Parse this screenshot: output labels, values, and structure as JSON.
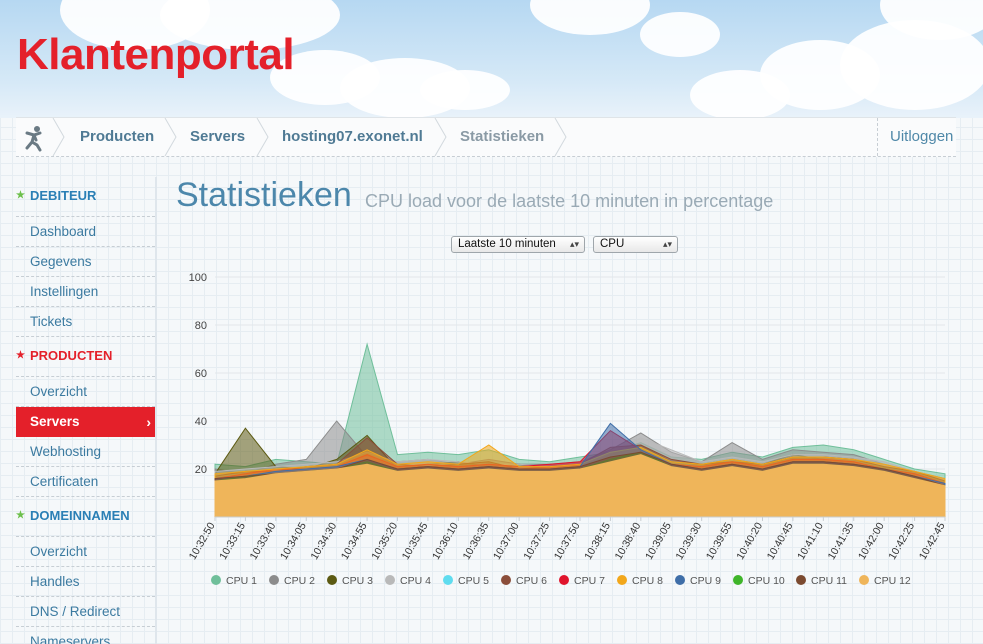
{
  "header": {
    "brand": "Klantenportal"
  },
  "breadcrumb": {
    "items": [
      "Producten",
      "Servers",
      "hosting07.exonet.nl",
      "Statistieken"
    ],
    "logout": "Uitloggen"
  },
  "sidebar": {
    "sections": [
      {
        "title": "DEBITEUR",
        "items": [
          "Dashboard",
          "Gegevens",
          "Instellingen",
          "Tickets"
        ]
      },
      {
        "title": "PRODUCTEN",
        "items": [
          "Overzicht",
          "Servers",
          "Webhosting",
          "Certificaten"
        ],
        "active": "Servers"
      },
      {
        "title": "DOMEINNAMEN",
        "items": [
          "Overzicht",
          "Handles",
          "DNS / Redirect",
          "Nameservers"
        ]
      }
    ]
  },
  "page": {
    "title": "Statistieken",
    "subtitle": "CPU load voor de laatste 10 minuten in percentage",
    "range_select": "Laatste 10 minuten",
    "metric_select": "CPU"
  },
  "colors": {
    "brand_red": "#e4202a",
    "link_blue": "#3b7aa0"
  },
  "chart_data": {
    "type": "area",
    "ylim": [
      0,
      100
    ],
    "yticks": [
      20,
      40,
      60,
      80,
      100
    ],
    "x": [
      "10:32:50",
      "10:33:15",
      "10:33:40",
      "10:34:05",
      "10:34:30",
      "10:34:55",
      "10:35:20",
      "10:35:45",
      "10:36:10",
      "10:36:35",
      "10:37:00",
      "10:37:25",
      "10:37:50",
      "10:38:15",
      "10:38:40",
      "10:39:05",
      "10:39:30",
      "10:39:55",
      "10:40:20",
      "10:40:45",
      "10:41:10",
      "10:41:35",
      "10:42:00",
      "10:42:25",
      "10:42:45"
    ],
    "series": [
      {
        "name": "CPU 1",
        "color": "#6fbf9a",
        "values": [
          22,
          21,
          24,
          23,
          22,
          72,
          26,
          27,
          26,
          28,
          24,
          23,
          25,
          27,
          31,
          25,
          24,
          27,
          25,
          29,
          30,
          28,
          24,
          20,
          18
        ]
      },
      {
        "name": "CPU 2",
        "color": "#8c8c8c",
        "values": [
          20,
          18,
          22,
          24,
          40,
          25,
          23,
          24,
          22,
          24,
          22,
          22,
          23,
          28,
          35,
          27,
          23,
          31,
          24,
          28,
          27,
          26,
          22,
          19,
          16
        ]
      },
      {
        "name": "CPU 3",
        "color": "#5c5a12",
        "values": [
          18,
          37,
          21,
          20,
          24,
          34,
          20,
          22,
          23,
          21,
          22,
          20,
          21,
          26,
          30,
          23,
          22,
          24,
          22,
          26,
          24,
          23,
          21,
          18,
          15
        ]
      },
      {
        "name": "CPU 4",
        "color": "#b9b9b9",
        "values": [
          19,
          20,
          21,
          22,
          23,
          27,
          23,
          24,
          23,
          22,
          22,
          21,
          22,
          27,
          33,
          28,
          23,
          25,
          23,
          26,
          26,
          25,
          23,
          19,
          16
        ]
      },
      {
        "name": "CPU 5",
        "color": "#5fdcef",
        "values": [
          17,
          18,
          19,
          20,
          21,
          25,
          21,
          22,
          21,
          22,
          21,
          20,
          21,
          25,
          29,
          23,
          21,
          23,
          21,
          24,
          24,
          23,
          21,
          18,
          15
        ]
      },
      {
        "name": "CPU 6",
        "color": "#8b4e3a",
        "values": [
          17,
          19,
          19,
          21,
          22,
          33,
          22,
          21,
          22,
          23,
          20,
          21,
          22,
          29,
          30,
          24,
          22,
          23,
          22,
          25,
          25,
          24,
          21,
          19,
          15
        ]
      },
      {
        "name": "CPU 7",
        "color": "#e0142c",
        "values": [
          16,
          18,
          20,
          20,
          21,
          26,
          21,
          22,
          21,
          22,
          21,
          22,
          23,
          36,
          28,
          22,
          21,
          23,
          21,
          24,
          24,
          23,
          20,
          18,
          14
        ]
      },
      {
        "name": "CPU 8",
        "color": "#f2a71b",
        "values": [
          18,
          19,
          20,
          21,
          22,
          28,
          22,
          23,
          22,
          30,
          21,
          21,
          22,
          27,
          29,
          23,
          22,
          24,
          22,
          25,
          25,
          24,
          22,
          19,
          16
        ]
      },
      {
        "name": "CPU 9",
        "color": "#3f6ea8",
        "values": [
          16,
          17,
          19,
          20,
          21,
          24,
          20,
          21,
          20,
          21,
          20,
          20,
          21,
          39,
          28,
          22,
          20,
          22,
          20,
          23,
          23,
          22,
          20,
          17,
          14
        ]
      },
      {
        "name": "CPU 10",
        "color": "#3fb52a",
        "values": [
          15,
          17,
          18,
          19,
          20,
          23,
          19,
          20,
          19,
          20,
          19,
          19,
          20,
          24,
          27,
          21,
          19,
          21,
          19,
          22,
          22,
          21,
          19,
          16,
          13
        ]
      },
      {
        "name": "CPU 11",
        "color": "#7b4a30",
        "values": [
          16,
          17,
          18,
          19,
          20,
          24,
          20,
          21,
          20,
          21,
          20,
          20,
          21,
          25,
          27,
          22,
          20,
          22,
          20,
          23,
          23,
          22,
          20,
          17,
          13
        ]
      },
      {
        "name": "CPU 12",
        "color": "#efb55a",
        "values": [
          15,
          16,
          18,
          19,
          20,
          22,
          19,
          20,
          19,
          20,
          19,
          19,
          20,
          23,
          26,
          21,
          19,
          21,
          19,
          22,
          22,
          21,
          19,
          16,
          13
        ]
      }
    ],
    "legend_position": "bottom"
  }
}
